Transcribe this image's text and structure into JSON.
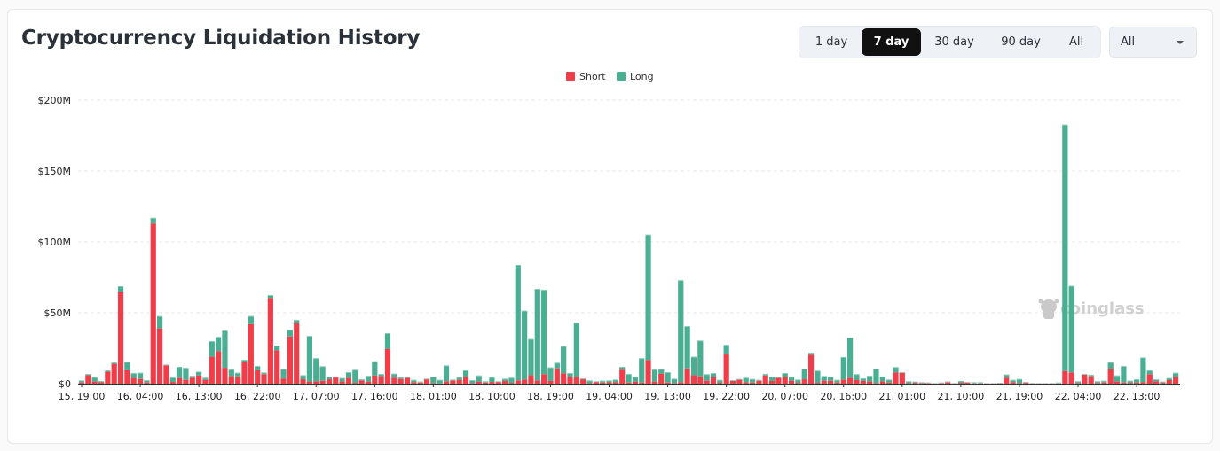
{
  "header": {
    "title": "Cryptocurrency Liquidation History"
  },
  "range_tabs": [
    {
      "label": "1 day",
      "active": false
    },
    {
      "label": "7 day",
      "active": true
    },
    {
      "label": "30 day",
      "active": false
    },
    {
      "label": "90 day",
      "active": false
    },
    {
      "label": "All",
      "active": false
    }
  ],
  "coin_select": {
    "value": "All"
  },
  "watermark": "coinglass",
  "chart_data": {
    "type": "bar",
    "stacked": true,
    "legend": {
      "placement": "top-center",
      "entries": [
        "Short",
        "Long"
      ]
    },
    "colors": {
      "Short": "#ef3e4a",
      "Long": "#4aae93"
    },
    "grid": true,
    "ylim": [
      0,
      200
    ],
    "y_unit": "$M",
    "y_ticks": [
      "$0",
      "$50M",
      "$100M",
      "$150M",
      "$200M"
    ],
    "y_tick_values": [
      0,
      50,
      100,
      150,
      200
    ],
    "x_tick_labels": [
      "15, 19:00",
      "16, 04:00",
      "16, 13:00",
      "16, 22:00",
      "17, 07:00",
      "17, 16:00",
      "18, 01:00",
      "18, 10:00",
      "18, 19:00",
      "19, 04:00",
      "19, 13:00",
      "19, 22:00",
      "20, 07:00",
      "20, 16:00",
      "21, 01:00",
      "21, 10:00",
      "21, 19:00",
      "22, 04:00",
      "22, 13:00"
    ],
    "categories": [
      "15, 19:00",
      "15, 20:00",
      "15, 21:00",
      "15, 22:00",
      "15, 23:00",
      "16, 00:00",
      "16, 01:00",
      "16, 02:00",
      "16, 03:00",
      "16, 04:00",
      "16, 05:00",
      "16, 06:00",
      "16, 07:00",
      "16, 08:00",
      "16, 09:00",
      "16, 10:00",
      "16, 11:00",
      "16, 12:00",
      "16, 13:00",
      "16, 14:00",
      "16, 15:00",
      "16, 16:00",
      "16, 17:00",
      "16, 18:00",
      "16, 19:00",
      "16, 20:00",
      "16, 21:00",
      "16, 22:00",
      "16, 23:00",
      "17, 00:00",
      "17, 01:00",
      "17, 02:00",
      "17, 03:00",
      "17, 04:00",
      "17, 05:00",
      "17, 06:00",
      "17, 07:00",
      "17, 08:00",
      "17, 09:00",
      "17, 10:00",
      "17, 11:00",
      "17, 12:00",
      "17, 13:00",
      "17, 14:00",
      "17, 15:00",
      "17, 16:00",
      "17, 17:00",
      "17, 18:00",
      "17, 19:00",
      "17, 20:00",
      "17, 21:00",
      "17, 22:00",
      "17, 23:00",
      "18, 00:00",
      "18, 01:00",
      "18, 02:00",
      "18, 03:00",
      "18, 04:00",
      "18, 05:00",
      "18, 06:00",
      "18, 07:00",
      "18, 08:00",
      "18, 09:00",
      "18, 10:00",
      "18, 11:00",
      "18, 12:00",
      "18, 13:00",
      "18, 14:00",
      "18, 15:00",
      "18, 16:00",
      "18, 17:00",
      "18, 18:00",
      "18, 19:00",
      "18, 20:00",
      "18, 21:00",
      "18, 22:00",
      "18, 23:00",
      "19, 00:00",
      "19, 01:00",
      "19, 02:00",
      "19, 03:00",
      "19, 04:00",
      "19, 05:00",
      "19, 06:00",
      "19, 07:00",
      "19, 08:00",
      "19, 09:00",
      "19, 10:00",
      "19, 11:00",
      "19, 12:00",
      "19, 13:00",
      "19, 14:00",
      "19, 15:00",
      "19, 16:00",
      "19, 17:00",
      "19, 18:00",
      "19, 19:00",
      "19, 20:00",
      "19, 21:00",
      "19, 22:00",
      "19, 23:00",
      "20, 00:00",
      "20, 01:00",
      "20, 02:00",
      "20, 03:00",
      "20, 04:00",
      "20, 05:00",
      "20, 06:00",
      "20, 07:00",
      "20, 08:00",
      "20, 09:00",
      "20, 10:00",
      "20, 11:00",
      "20, 12:00",
      "20, 13:00",
      "20, 14:00",
      "20, 15:00",
      "20, 16:00",
      "20, 17:00",
      "20, 18:00",
      "20, 19:00",
      "20, 20:00",
      "20, 21:00",
      "20, 22:00",
      "20, 23:00",
      "21, 00:00",
      "21, 01:00",
      "21, 02:00",
      "21, 03:00",
      "21, 04:00",
      "21, 05:00",
      "21, 06:00",
      "21, 07:00",
      "21, 08:00",
      "21, 09:00",
      "21, 10:00",
      "21, 11:00",
      "21, 12:00",
      "21, 13:00",
      "21, 14:00",
      "21, 15:00",
      "21, 16:00",
      "21, 17:00",
      "21, 18:00",
      "21, 19:00",
      "21, 20:00",
      "21, 21:00",
      "21, 22:00",
      "21, 23:00",
      "22, 00:00",
      "22, 01:00",
      "22, 02:00",
      "22, 03:00",
      "22, 04:00",
      "22, 05:00",
      "22, 06:00",
      "22, 07:00",
      "22, 08:00",
      "22, 09:00",
      "22, 10:00",
      "22, 11:00",
      "22, 12:00",
      "22, 13:00",
      "22, 14:00",
      "22, 15:00",
      "22, 16:00",
      "22, 17:00",
      "22, 18:00",
      "22, 19:00"
    ],
    "series": [
      {
        "name": "Short",
        "values": [
          0.8,
          6,
          1.5,
          1,
          8.5,
          14,
          64.6,
          9.4,
          4,
          3.3,
          0.8,
          113,
          39,
          13,
          1.2,
          4,
          2.7,
          4.2,
          5.8,
          2.7,
          19,
          23,
          11.2,
          5.4,
          5.2,
          15,
          42,
          9.4,
          6.7,
          60.4,
          23.5,
          3.5,
          33.3,
          42.7,
          3.1,
          1.5,
          1.7,
          2,
          3.1,
          4.4,
          1.5,
          4,
          0.6,
          2.3,
          1.5,
          5.8,
          5.4,
          24.4,
          4.2,
          3.3,
          4,
          1,
          0.8,
          3.1,
          0.4,
          0.2,
          1.7,
          2.3,
          2.7,
          4.8,
          0.4,
          1.5,
          0.8,
          1.2,
          1.2,
          1.9,
          0.6,
          2.3,
          2.9,
          6,
          2.3,
          6.7,
          1.9,
          10.8,
          7.3,
          4.6,
          5,
          3.1,
          0.4,
          1.2,
          0.8,
          1,
          1,
          9.8,
          0.8,
          1.5,
          0.8,
          16.7,
          1.5,
          7.1,
          0.8,
          0.4,
          1,
          10.8,
          6,
          5.2,
          2.1,
          4.4,
          0.6,
          20.6,
          1.9,
          2.9,
          1,
          0.8,
          2.1,
          5.8,
          1.9,
          4,
          5,
          2.1,
          0.6,
          3.1,
          20.4,
          0.6,
          2.1,
          2.1,
          0.8,
          2.9,
          4,
          2.5,
          1.9,
          1.7,
          0.4,
          1.7,
          0.8,
          7.9,
          7.7,
          0.4,
          0.6,
          0.4,
          0.4,
          0.2,
          0.4,
          1,
          0.2,
          0.6,
          0.8,
          0.2,
          0.2,
          0.2,
          0.2,
          0.3,
          4.2,
          1,
          0.4,
          0.6,
          0.3,
          0.2,
          0.2,
          0.2,
          0.2,
          8.8,
          7.9,
          0.4,
          6.3,
          5.2,
          0.4,
          0.8,
          10.4,
          1.5,
          0.8,
          0.6,
          0.8,
          1,
          6.7,
          1.7,
          0.6,
          2.5,
          4.8
        ]
      },
      {
        "name": "Long",
        "values": [
          1.5,
          0.9,
          3.1,
          0.9,
          0.9,
          1,
          4.2,
          6,
          3.5,
          4.4,
          1.7,
          4,
          8.7,
          0.5,
          3.2,
          7.9,
          8.5,
          1.4,
          2.7,
          1.5,
          11,
          10,
          26.3,
          4.6,
          2.5,
          1.9,
          5.7,
          3.1,
          1.2,
          2.1,
          3.4,
          6.9,
          4.7,
          2.3,
          2.9,
          32.2,
          16.3,
          10.3,
          1.9,
          0.4,
          2.5,
          4.1,
          9.2,
          0.8,
          4.1,
          10,
          1.5,
          11.2,
          2.9,
          1.3,
          0.8,
          1.7,
          0.7,
          0.4,
          4.6,
          2.5,
          11.2,
          0.6,
          1.9,
          4.6,
          2.1,
          4.3,
          0.9,
          3.4,
          0.5,
          1.6,
          3.6,
          81.5,
          48.6,
          25.5,
          64.6,
          59.6,
          9.6,
          4,
          19.2,
          2.9,
          38,
          0.6,
          1.9,
          0.5,
          1.3,
          1.3,
          1.9,
          2.1,
          6.1,
          3.3,
          17.2,
          88.5,
          8.5,
          3.3,
          7.3,
          3.1,
          72,
          29.8,
          13,
          25.2,
          4.6,
          3.1,
          2.1,
          6.9,
          0.6,
          0.4,
          3.2,
          2.5,
          0.6,
          1.1,
          3.1,
          0.8,
          2.5,
          2.7,
          2.3,
          7.5,
          1.5,
          8.6,
          3.3,
          2.9,
          1.9,
          15.9,
          28.5,
          4.2,
          1.9,
          3.9,
          10.2,
          3.3,
          2.1,
          3.8,
          0.4,
          1.3,
          0.9,
          0.6,
          0.4,
          0.2,
          0.4,
          0.5,
          0.2,
          1.3,
          0.4,
          0.8,
          0.8,
          0.2,
          0.2,
          0.3,
          2.3,
          1.7,
          2.9,
          0.6,
          0.1,
          0.2,
          0.2,
          0.2,
          0.6,
          173.9,
          61.1,
          1.3,
          0.6,
          1.1,
          1.3,
          1.3,
          4.8,
          4.3,
          11.7,
          1.5,
          2.3,
          17.5,
          2.7,
          1.4,
          0.9,
          1.5,
          2.9
        ]
      }
    ]
  }
}
